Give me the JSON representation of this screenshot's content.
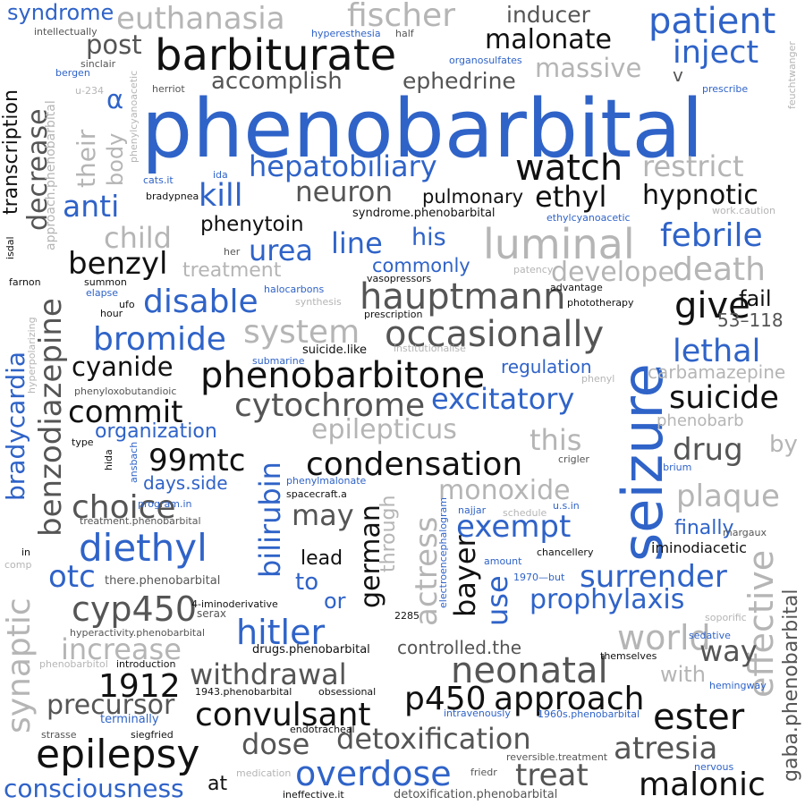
{
  "colors": {
    "blue": "#2f63c8",
    "black": "#111111",
    "dark_gray": "#555555",
    "light_gray": "#b5b5b5"
  },
  "words": {
    "phenobarbital": "phenobarbital",
    "seizure": "seizure",
    "barbiturate": "barbiturate",
    "luminal": "luminal",
    "patient": "patient",
    "euthanasia": "euthanasia",
    "fischer": "fischer",
    "syndrome": "syndrome",
    "inducer": "inducer",
    "malonate": "malonate",
    "inject": "inject",
    "massive": "massive",
    "post": "post",
    "accomplish": "accomplish",
    "ephedrine": "ephedrine",
    "alpha": "α",
    "v": "v",
    "transcription": "transcription",
    "decrease": "decrease",
    "their": "their",
    "body": "body",
    "restrict": "restrict",
    "watch": "watch",
    "hepatobiliary": "hepatobiliary",
    "kill": "kill",
    "anti": "anti",
    "neuron": "neuron",
    "ethyl": "ethyl",
    "hypnotic": "hypnotic",
    "pulmonary": "pulmonary",
    "phenytoin": "phenytoin",
    "child": "child",
    "urea": "urea",
    "line": "line",
    "his": "his",
    "febrile": "febrile",
    "benzodiazepine": "benzodiazepine",
    "benzyl": "benzyl",
    "treatment": "treatment",
    "commonly": "commonly",
    "develope": "develope",
    "death": "death",
    "hauptmann": "hauptmann",
    "disable": "disable",
    "give": "give",
    "fail": "fail",
    "range_53_118": "53–118",
    "system": "system",
    "occasionally": "occasionally",
    "bromide": "bromide",
    "bradycardia": "bradycardia",
    "lethal": "lethal",
    "cyanide": "cyanide",
    "phenobarbitone": "phenobarbitone",
    "regulation": "regulation",
    "carbamazepine": "carbamazepine",
    "cytochrome": "cytochrome",
    "excitatory": "excitatory",
    "suicide": "suicide",
    "commit": "commit",
    "epilepticus": "epilepticus",
    "phenobarb": "phenobarb",
    "organization": "organization",
    "this": "this",
    "drug": "drug",
    "by": "by",
    "mtc": "99mtc",
    "bilirubin": "bilirubin",
    "condensation": "condensation",
    "days_side": "days.side",
    "monoxide": "monoxide",
    "plaque": "plaque",
    "choice": "choice",
    "may": "may",
    "german": "german",
    "actress": "actress",
    "through": "through",
    "exempt": "exempt",
    "finally": "finally",
    "iminodiacetic": "iminodiacetic",
    "diethyl": "diethyl",
    "synaptic": "synaptic",
    "otc": "otc",
    "lead": "lead",
    "to": "to",
    "bayer": "bayer",
    "use": "use",
    "surrender": "surrender",
    "effective": "effective",
    "prophylaxis": "prophylaxis",
    "cyp450": "cyp450",
    "or": "or",
    "hitler": "hitler",
    "increase": "increase",
    "controlled_the": "controlled.the",
    "neonatal": "neonatal",
    "world": "world",
    "way": "way",
    "withdrawal": "withdrawal",
    "year_1912": "1912",
    "with": "with",
    "precursor": "precursor",
    "p450": "p450",
    "approach": "approach",
    "convulsant": "convulsant",
    "ester": "ester",
    "gaba_phenobarbital": "gaba.phenobarbital",
    "dose": "dose",
    "detoxification": "detoxification",
    "atresia": "atresia",
    "epilepsy": "epilepsy",
    "overdose": "overdose",
    "treat": "treat",
    "malonic": "malonic",
    "consciousness": "consciousness",
    "at": "at",
    "intellectually": "intellectually",
    "hyperesthesia": "hyperesthesia",
    "half": "half",
    "organosulfates": "organosulfates",
    "sinclair": "sinclair",
    "bergen": "bergen",
    "u234": "u-234",
    "approach_phenobarbital": "approach.phenobarbital",
    "phenylcyanoacetic": "phenylcyanoacetic",
    "herriot": "herriot",
    "prescribe": "prescribe",
    "feuchtwanger": "feuchtwanger",
    "cats_it": "cats.it",
    "ida": "ida",
    "bradypnea": "bradypnea",
    "syndrome_phenobarbital": "syndrome.phenobarbital",
    "ethylcyanoacetic": "ethylcyanoacetic",
    "work_caution": "work.caution",
    "isdal": "isdal",
    "her": "her",
    "patency": "patency",
    "farnon": "farnon",
    "summon": "summon",
    "elapse": "elapse",
    "halocarbons": "halocarbons",
    "vasopressors": "vasopressors",
    "advantage": "advantage",
    "hour": "hour",
    "ufo": "ufo",
    "synthesis": "synthesis",
    "prescription": "prescription",
    "phototherapy": "phototherapy",
    "hyperpolarizing": "hyperpolarizing",
    "institutionalise": "institutionalise",
    "suicide_like": "suicide.like",
    "submarine": "submarine",
    "phenyl": "phenyl",
    "phenyloxobutandioic": "phenyloxobutandioic",
    "type": "type",
    "hida": "hida",
    "ansbach": "ansbach",
    "phenylmalonate": "phenylmalonate",
    "spacecraft_a": "spacecraft.a",
    "crigler": "crigler",
    "librium": "librium",
    "program_in": "program.in",
    "treatment_phenobarbital": "treatment.phenobarbital",
    "najjar": "najjar",
    "schedule": "schedule",
    "us_in": "u.s.in",
    "margaux": "margaux",
    "in": "in",
    "comp": "comp",
    "there_phenobarbital": "there.phenobarbital",
    "electroencephalogram": "electroencephalogram",
    "amount": "amount",
    "chancellery": "chancellery",
    "iminoderivative": "4-iminoderivative",
    "serax": "serax",
    "num_2285": "2285",
    "year_1970_but": "1970—but",
    "hyperactivity_phenobarbital": "hyperactivity.phenobarbital",
    "soporific": "soporific",
    "sedative": "sedative",
    "phenobarbitol": "phenobarbitol",
    "introduction": "introduction",
    "drugs_phenobarbital": "drugs.phenobarbital",
    "themselves": "themselves",
    "hemingway": "hemingway",
    "phenobarbital_1943": "1943.phenobarbital",
    "obsessional": "obsessional",
    "terminally": "terminally",
    "intravenously": "intravenously",
    "phenobarbital_1960s": "1960s.phenobarbital",
    "strasse": "strasse",
    "siegfried": "siegfried",
    "endotracheal": "endotracheal",
    "reversible_treatment": "reversible.treatment",
    "medication": "medication",
    "friedr": "friedr",
    "nervous": "nervous",
    "ineffective_it": "ineffective.it",
    "detoxification_phenobarbital": "detoxification.phenobarbital"
  }
}
